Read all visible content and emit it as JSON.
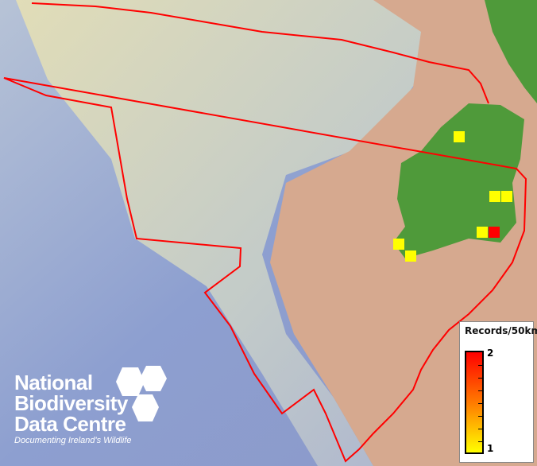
{
  "map": {
    "boundary_color": "#ff0000",
    "land_color": "#4f9a3a",
    "records": [
      {
        "count": 1
      },
      {
        "count": 1
      },
      {
        "count": 1
      },
      {
        "count": 1
      },
      {
        "count": 2
      },
      {
        "count": 1
      },
      {
        "count": 1
      }
    ]
  },
  "legend": {
    "title": "Records/50km",
    "max_label": "2",
    "min_label": "1",
    "color_min": "#ffff00",
    "color_max": "#ff0000"
  },
  "logo": {
    "line1": "National",
    "line2": "Biodiversity",
    "line3": "Data Centre",
    "tagline": "Documenting Ireland's Wildlife"
  }
}
